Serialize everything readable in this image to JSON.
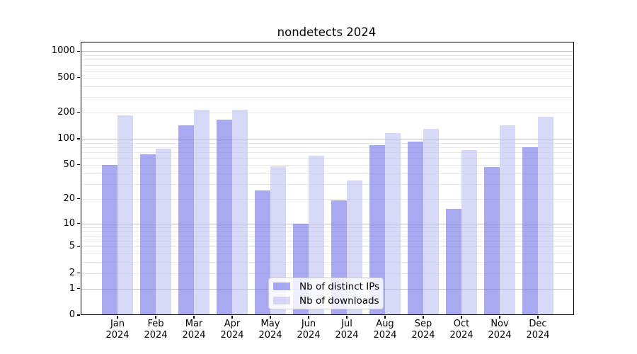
{
  "chart_data": {
    "type": "bar",
    "title": "nondetects 2024",
    "categories": [
      "Jan",
      "Feb",
      "Mar",
      "Apr",
      "May",
      "Jun",
      "Jul",
      "Aug",
      "Sep",
      "Oct",
      "Nov",
      "Dec"
    ],
    "x_year_line": "2024",
    "series": [
      {
        "name": "Nb of distinct IPs",
        "color": "#7070ea",
        "opacity": 0.6,
        "values": [
          50,
          66,
          143,
          166,
          25,
          10,
          19,
          84,
          93,
          15,
          47,
          80
        ]
      },
      {
        "name": "Nb of downloads",
        "color": "#b8b8f0",
        "opacity": 0.55,
        "values": [
          186,
          77,
          215,
          215,
          48,
          64,
          33,
          116,
          130,
          74,
          143,
          179
        ]
      }
    ],
    "y_scale": "log1p",
    "ylim": [
      0,
      1280
    ],
    "y_ticks": [
      0,
      1,
      2,
      5,
      10,
      20,
      50,
      100,
      200,
      500,
      1000
    ],
    "y_major_gridlines": [
      1,
      10,
      100,
      1000
    ],
    "grid": true,
    "legend_position": "lower center",
    "style": {
      "background": "#ffffff",
      "spine_color": "#000000",
      "major_grid_color": "#c2c2c2",
      "minor_grid_color": "#eaeaea",
      "legend_border_color": "#cccccc"
    }
  }
}
